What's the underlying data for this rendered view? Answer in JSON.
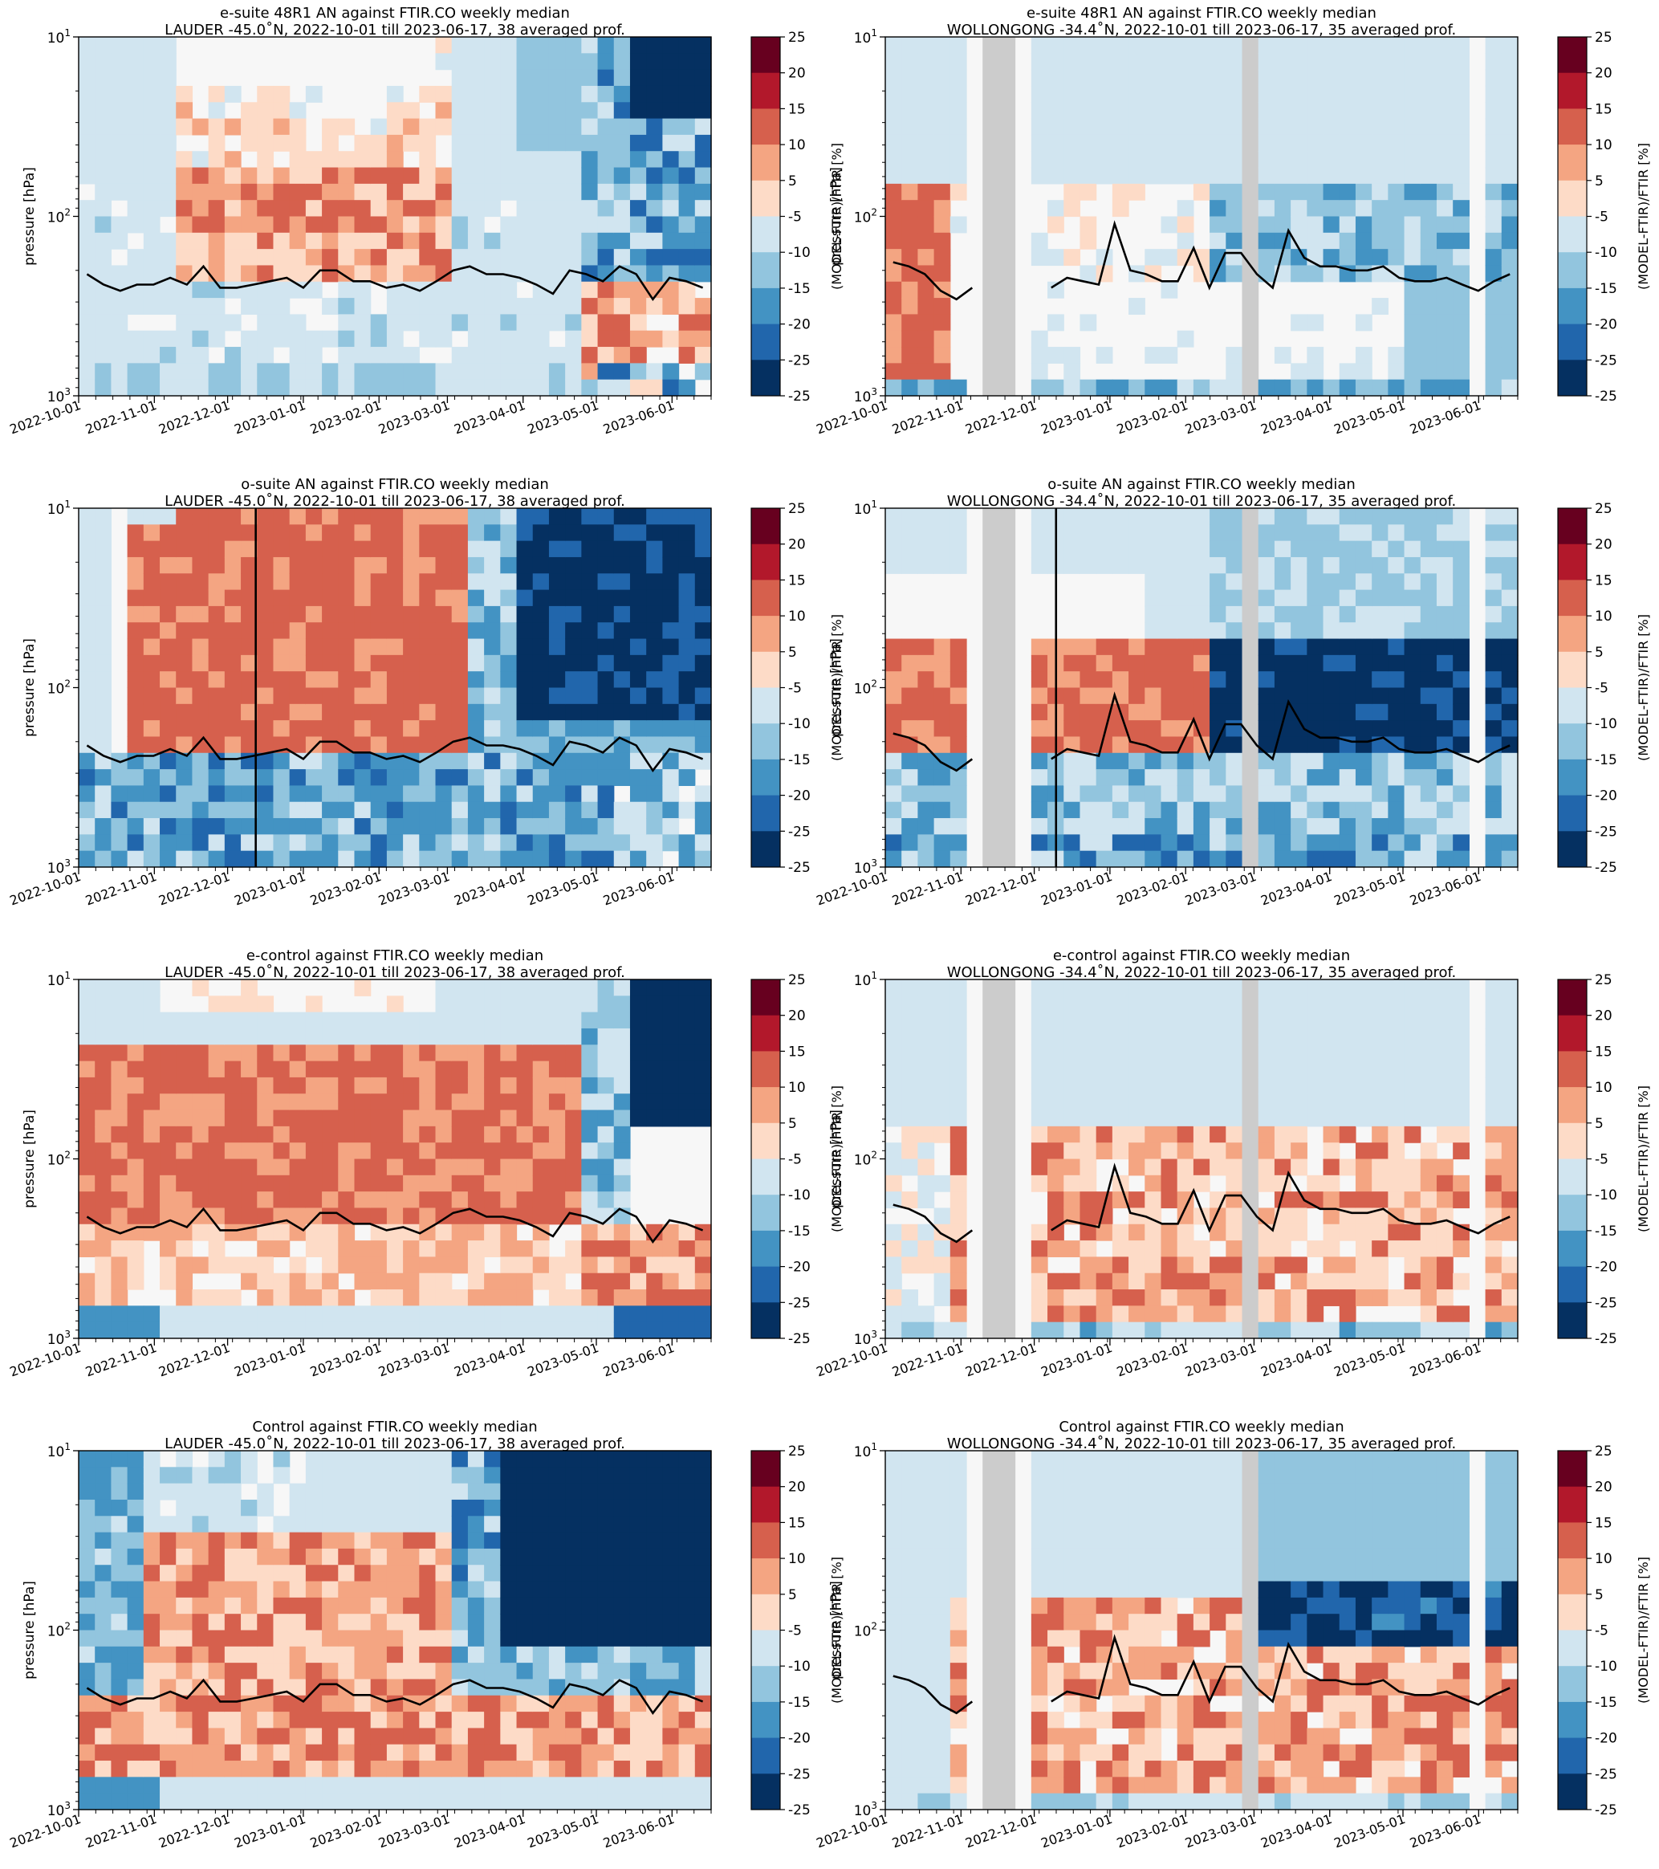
{
  "figure": {
    "colorbar_label": "(MODEL-FTIR)/FTIR [%]",
    "colorbar_ticks": [
      "25",
      "20",
      "15",
      "10",
      "5",
      "-5",
      "-10",
      "-15",
      "-20",
      "-25"
    ],
    "colorbar_colors": [
      "#053061",
      "#2166ac",
      "#4393c3",
      "#92c5de",
      "#d1e5f0",
      "#f7f7f7",
      "#fddbc7",
      "#f4a582",
      "#d6604d",
      "#b2182b",
      "#67001f"
    ],
    "y_label": "pressure [hPa]",
    "x_ticks_lauder": [
      "2022-10-01",
      "2022-11-01",
      "2022-12-01",
      "2023-01-01",
      "2023-02-01",
      "2023-03-01",
      "2023-04-01",
      "2023-05-01",
      "2023-06-01"
    ],
    "x_ticks_wollongong": [
      "2022-10-01",
      "2022-11-01",
      "2022-12-01",
      "2023-01-01",
      "2023-02-01",
      "2023-03-01",
      "2023-04-01",
      "2023-05-01",
      "2023-06-01"
    ],
    "colors": {
      "missing": "#cccccc",
      "tropopause": "#000000"
    }
  },
  "chart_data": [
    {
      "type": "heatmap",
      "title": "e-suite 48R1 AN against FTIR.CO weekly median",
      "subtitle": "LAUDER -45.0˚N, 2022-10-01 till 2023-06-17, 38 averaged prof.",
      "ylabel": "pressure [hPa]",
      "ylim": [
        1000,
        10
      ],
      "yscale": "log",
      "xlim": [
        "2022-10-01",
        "2023-06-17"
      ],
      "colorbar": {
        "label": "(MODEL-FTIR)/FTIR [%]",
        "range": [
          -25,
          25
        ]
      },
      "pattern": "A",
      "tropopause_hPa": [
        210,
        240,
        260,
        240,
        240,
        220,
        240,
        190,
        250,
        250,
        240,
        230,
        220,
        250,
        200,
        200,
        230,
        230,
        250,
        240,
        260,
        230,
        200,
        190,
        210,
        210,
        220,
        240,
        270,
        200,
        210,
        230,
        190,
        210,
        290,
        220,
        230,
        250
      ]
    },
    {
      "type": "heatmap",
      "title": "e-suite 48R1 AN against FTIR.CO weekly median",
      "subtitle": "WOLLONGONG -34.4˚N, 2022-10-01 till 2023-06-17, 35 averaged prof.",
      "ylabel": "pressure [hPa]",
      "ylim": [
        1000,
        10
      ],
      "yscale": "log",
      "xlim": [
        "2022-10-01",
        "2023-06-17"
      ],
      "colorbar": {
        "label": "(MODEL-FTIR)/FTIR [%]",
        "range": [
          -25,
          25
        ]
      },
      "pattern": "B",
      "tropopause_hPa": [
        180,
        190,
        210,
        260,
        290,
        250,
        null,
        null,
        null,
        null,
        250,
        220,
        230,
        240,
        110,
        200,
        210,
        230,
        230,
        150,
        250,
        160,
        160,
        210,
        250,
        120,
        170,
        190,
        190,
        200,
        200,
        190,
        220,
        230,
        230,
        220,
        240,
        260,
        230,
        210
      ]
    },
    {
      "type": "heatmap",
      "title": "o-suite AN against FTIR.CO weekly median",
      "subtitle": "LAUDER -45.0˚N, 2022-10-01 till 2023-06-17, 38 averaged prof.",
      "ylabel": "pressure [hPa]",
      "ylim": [
        1000,
        10
      ],
      "yscale": "log",
      "xlim": [
        "2022-10-01",
        "2023-06-17"
      ],
      "colorbar": {
        "label": "(MODEL-FTIR)/FTIR [%]",
        "range": [
          -25,
          25
        ]
      },
      "pattern": "C",
      "tropopause_hPa": [
        210,
        240,
        260,
        240,
        240,
        220,
        240,
        190,
        250,
        250,
        240,
        230,
        220,
        250,
        200,
        200,
        230,
        230,
        250,
        240,
        260,
        230,
        200,
        190,
        210,
        210,
        220,
        240,
        270,
        200,
        210,
        230,
        190,
        210,
        290,
        220,
        230,
        250
      ]
    },
    {
      "type": "heatmap",
      "title": "o-suite AN against FTIR.CO weekly median",
      "subtitle": "WOLLONGONG -34.4˚N, 2022-10-01 till 2023-06-17, 35 averaged prof.",
      "ylabel": "pressure [hPa]",
      "ylim": [
        1000,
        10
      ],
      "yscale": "log",
      "xlim": [
        "2022-10-01",
        "2023-06-17"
      ],
      "colorbar": {
        "label": "(MODEL-FTIR)/FTIR [%]",
        "range": [
          -25,
          25
        ]
      },
      "pattern": "D",
      "tropopause_hPa": [
        180,
        190,
        210,
        260,
        290,
        250,
        null,
        null,
        null,
        null,
        250,
        220,
        230,
        240,
        110,
        200,
        210,
        230,
        230,
        150,
        250,
        160,
        160,
        210,
        250,
        120,
        170,
        190,
        190,
        200,
        200,
        190,
        220,
        230,
        230,
        220,
        240,
        260,
        230,
        210
      ]
    },
    {
      "type": "heatmap",
      "title": "e-control against FTIR.CO weekly median",
      "subtitle": "LAUDER -45.0˚N, 2022-10-01 till 2023-06-17, 38 averaged prof.",
      "ylabel": "pressure [hPa]",
      "ylim": [
        1000,
        10
      ],
      "yscale": "log",
      "xlim": [
        "2022-10-01",
        "2023-06-17"
      ],
      "colorbar": {
        "label": "(MODEL-FTIR)/FTIR [%]",
        "range": [
          -25,
          25
        ]
      },
      "pattern": "E",
      "tropopause_hPa": [
        210,
        240,
        260,
        240,
        240,
        220,
        240,
        190,
        250,
        250,
        240,
        230,
        220,
        250,
        200,
        200,
        230,
        230,
        250,
        240,
        260,
        230,
        200,
        190,
        210,
        210,
        220,
        240,
        270,
        200,
        210,
        230,
        190,
        210,
        290,
        220,
        230,
        250
      ]
    },
    {
      "type": "heatmap",
      "title": "e-control against FTIR.CO weekly median",
      "subtitle": "WOLLONGONG -34.4˚N, 2022-10-01 till 2023-06-17, 35 averaged prof.",
      "ylabel": "pressure [hPa]",
      "ylim": [
        1000,
        10
      ],
      "yscale": "log",
      "xlim": [
        "2022-10-01",
        "2023-06-17"
      ],
      "colorbar": {
        "label": "(MODEL-FTIR)/FTIR [%]",
        "range": [
          -25,
          25
        ]
      },
      "pattern": "F",
      "tropopause_hPa": [
        180,
        190,
        210,
        260,
        290,
        250,
        null,
        null,
        null,
        null,
        250,
        220,
        230,
        240,
        110,
        200,
        210,
        230,
        230,
        150,
        250,
        160,
        160,
        210,
        250,
        120,
        170,
        190,
        190,
        200,
        200,
        190,
        220,
        230,
        230,
        220,
        240,
        260,
        230,
        210
      ]
    },
    {
      "type": "heatmap",
      "title": "Control against FTIR.CO weekly median",
      "subtitle": "LAUDER -45.0˚N, 2022-10-01 till 2023-06-17, 38 averaged prof.",
      "ylabel": "pressure [hPa]",
      "ylim": [
        1000,
        10
      ],
      "yscale": "log",
      "xlim": [
        "2022-10-01",
        "2023-06-17"
      ],
      "colorbar": {
        "label": "(MODEL-FTIR)/FTIR [%]",
        "range": [
          -25,
          25
        ]
      },
      "pattern": "G",
      "tropopause_hPa": [
        210,
        240,
        260,
        240,
        240,
        220,
        240,
        190,
        250,
        250,
        240,
        230,
        220,
        250,
        200,
        200,
        230,
        230,
        250,
        240,
        260,
        230,
        200,
        190,
        210,
        210,
        220,
        240,
        270,
        200,
        210,
        230,
        190,
        210,
        290,
        220,
        230,
        250
      ]
    },
    {
      "type": "heatmap",
      "title": "Control against FTIR.CO weekly median",
      "subtitle": "WOLLONGONG -34.4˚N, 2022-10-01 till 2023-06-17, 35 averaged prof.",
      "ylabel": "pressure [hPa]",
      "ylim": [
        1000,
        10
      ],
      "yscale": "log",
      "xlim": [
        "2022-10-01",
        "2023-06-17"
      ],
      "colorbar": {
        "label": "(MODEL-FTIR)/FTIR [%]",
        "range": [
          -25,
          25
        ]
      },
      "pattern": "H",
      "tropopause_hPa": [
        180,
        190,
        210,
        260,
        290,
        250,
        null,
        null,
        null,
        null,
        250,
        220,
        230,
        240,
        110,
        200,
        210,
        230,
        230,
        150,
        250,
        160,
        160,
        210,
        250,
        120,
        170,
        190,
        190,
        200,
        200,
        190,
        220,
        230,
        230,
        220,
        240,
        260,
        230,
        210
      ]
    }
  ]
}
